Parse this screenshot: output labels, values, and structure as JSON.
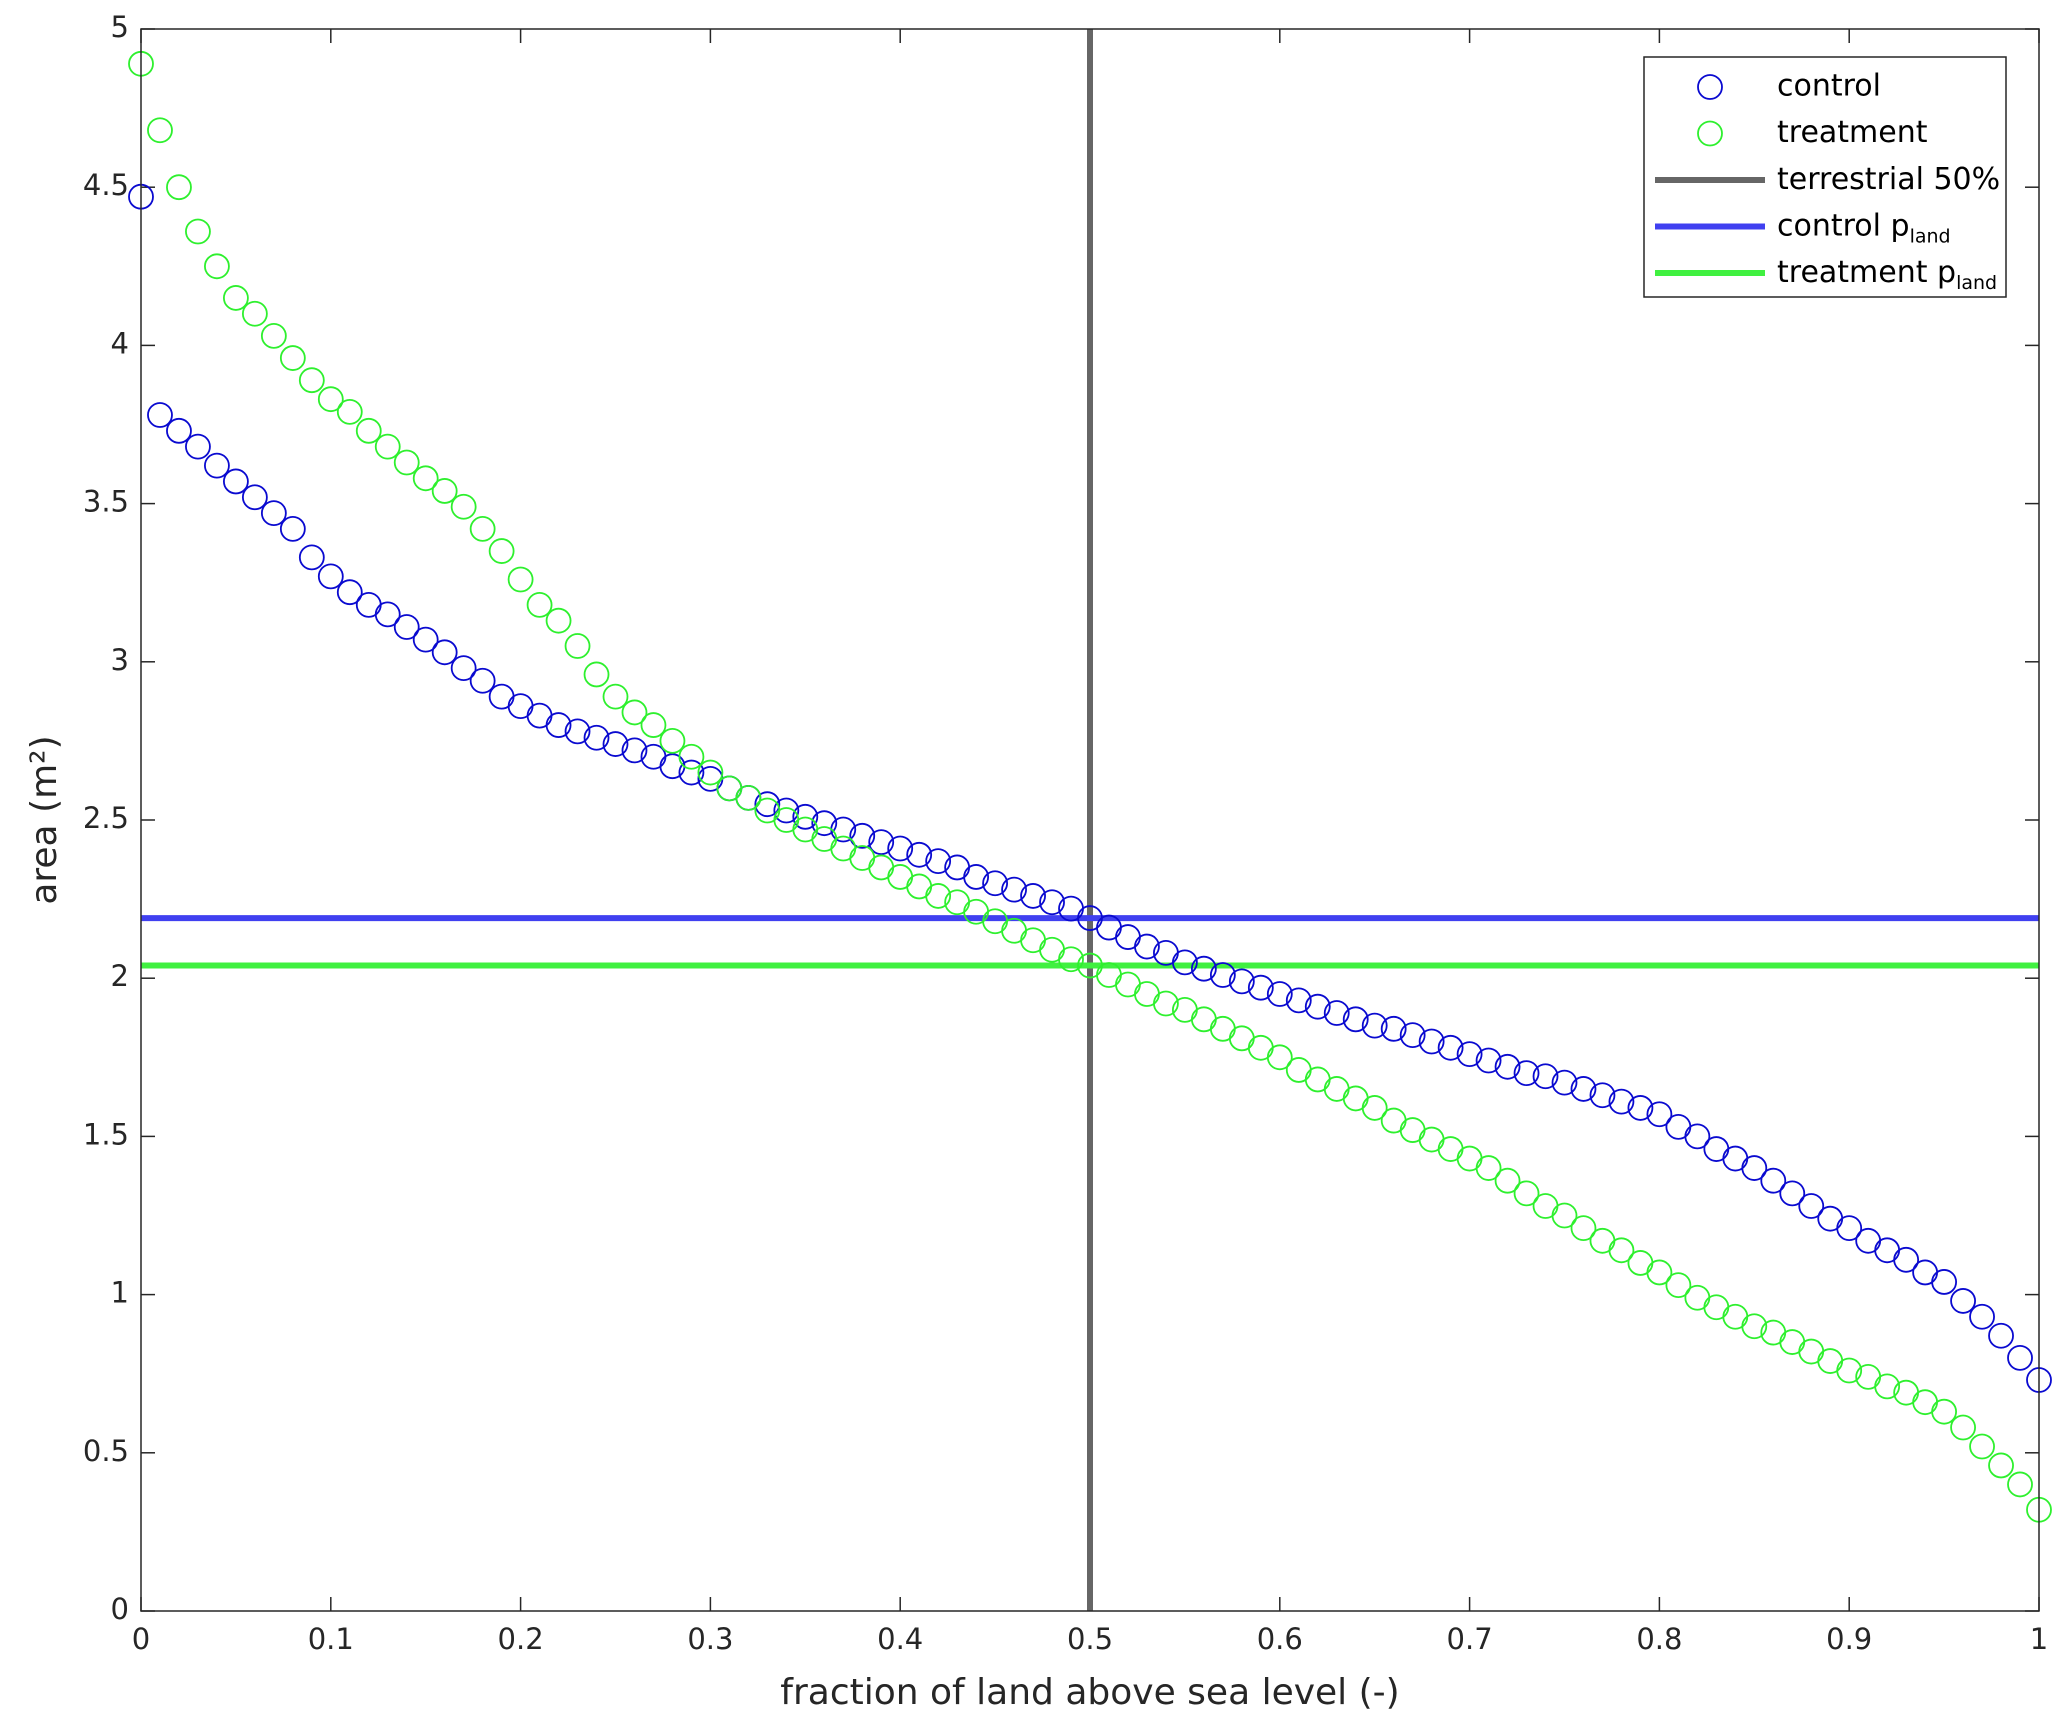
{
  "chart_data": {
    "type": "scatter",
    "xlabel": "fraction of land above sea level (-)",
    "ylabel": "area (m²)",
    "xlim": [
      0,
      1
    ],
    "ylim": [
      0,
      5
    ],
    "xticks": [
      0,
      0.1,
      0.2,
      0.3,
      0.4,
      0.5,
      0.6,
      0.7,
      0.8,
      0.9,
      1
    ],
    "yticks": [
      0,
      0.5,
      1,
      1.5,
      2,
      2.5,
      3,
      3.5,
      4,
      4.5,
      5
    ],
    "legend": "upper right",
    "grid": false,
    "x": [
      0,
      0.01,
      0.02,
      0.03,
      0.04,
      0.05,
      0.06,
      0.07,
      0.08,
      0.09,
      0.1,
      0.11,
      0.12,
      0.13,
      0.14,
      0.15,
      0.16,
      0.17,
      0.18,
      0.19,
      0.2,
      0.21,
      0.22,
      0.23,
      0.24,
      0.25,
      0.26,
      0.27,
      0.28,
      0.29,
      0.3,
      0.31,
      0.32,
      0.33,
      0.34,
      0.35,
      0.36,
      0.37,
      0.38,
      0.39,
      0.4,
      0.41,
      0.42,
      0.43,
      0.44,
      0.45,
      0.46,
      0.47,
      0.48,
      0.49,
      0.5,
      0.51,
      0.52,
      0.53,
      0.54,
      0.55,
      0.56,
      0.57,
      0.58,
      0.59,
      0.6,
      0.61,
      0.62,
      0.63,
      0.64,
      0.65,
      0.66,
      0.67,
      0.68,
      0.69,
      0.7,
      0.71,
      0.72,
      0.73,
      0.74,
      0.75,
      0.76,
      0.77,
      0.78,
      0.79,
      0.8,
      0.81,
      0.82,
      0.83,
      0.84,
      0.85,
      0.86,
      0.87,
      0.88,
      0.89,
      0.9,
      0.91,
      0.92,
      0.93,
      0.94,
      0.95,
      0.96,
      0.97,
      0.98,
      0.99,
      1
    ],
    "series": [
      {
        "name": "control",
        "color": "#0a0ad0",
        "marker": "circle",
        "values": [
          4.47,
          3.78,
          3.73,
          3.68,
          3.62,
          3.57,
          3.52,
          3.47,
          3.42,
          3.33,
          3.27,
          3.22,
          3.18,
          3.15,
          3.11,
          3.07,
          3.03,
          2.98,
          2.94,
          2.89,
          2.86,
          2.83,
          2.8,
          2.78,
          2.76,
          2.74,
          2.72,
          2.7,
          2.67,
          2.65,
          2.63,
          2.6,
          2.57,
          2.55,
          2.53,
          2.51,
          2.49,
          2.47,
          2.45,
          2.43,
          2.41,
          2.39,
          2.37,
          2.35,
          2.32,
          2.3,
          2.28,
          2.26,
          2.24,
          2.22,
          2.19,
          2.16,
          2.13,
          2.1,
          2.08,
          2.05,
          2.03,
          2.01,
          1.99,
          1.97,
          1.95,
          1.93,
          1.91,
          1.89,
          1.87,
          1.85,
          1.84,
          1.82,
          1.8,
          1.78,
          1.76,
          1.74,
          1.72,
          1.7,
          1.69,
          1.67,
          1.65,
          1.63,
          1.61,
          1.59,
          1.57,
          1.53,
          1.5,
          1.46,
          1.43,
          1.4,
          1.36,
          1.32,
          1.28,
          1.24,
          1.21,
          1.17,
          1.14,
          1.11,
          1.07,
          1.04,
          0.98,
          0.93,
          0.87,
          0.8,
          0.73
        ]
      },
      {
        "name": "treatment",
        "color": "#2ef02e",
        "marker": "circle",
        "values": [
          4.89,
          4.68,
          4.5,
          4.36,
          4.25,
          4.15,
          4.1,
          4.03,
          3.96,
          3.89,
          3.83,
          3.79,
          3.73,
          3.68,
          3.63,
          3.58,
          3.54,
          3.49,
          3.42,
          3.35,
          3.26,
          3.18,
          3.13,
          3.05,
          2.96,
          2.89,
          2.84,
          2.8,
          2.75,
          2.7,
          2.65,
          2.6,
          2.57,
          2.53,
          2.5,
          2.47,
          2.44,
          2.41,
          2.38,
          2.35,
          2.32,
          2.29,
          2.26,
          2.24,
          2.21,
          2.18,
          2.15,
          2.12,
          2.09,
          2.06,
          2.04,
          2.01,
          1.98,
          1.95,
          1.92,
          1.9,
          1.87,
          1.84,
          1.81,
          1.78,
          1.75,
          1.71,
          1.68,
          1.65,
          1.62,
          1.59,
          1.55,
          1.52,
          1.49,
          1.46,
          1.43,
          1.4,
          1.36,
          1.32,
          1.28,
          1.25,
          1.21,
          1.17,
          1.14,
          1.1,
          1.07,
          1.03,
          0.99,
          0.96,
          0.93,
          0.9,
          0.88,
          0.85,
          0.82,
          0.79,
          0.76,
          0.74,
          0.71,
          0.69,
          0.66,
          0.63,
          0.58,
          0.52,
          0.46,
          0.4,
          0.32
        ]
      }
    ],
    "reference_lines": [
      {
        "name": "terrestrial 50%",
        "orientation": "vertical",
        "value": 0.5,
        "color": "#666666"
      },
      {
        "name": "control p",
        "name_sub": "land",
        "orientation": "horizontal",
        "value": 2.19,
        "color": "#4040f0"
      },
      {
        "name": "treatment p",
        "name_sub": "land",
        "orientation": "horizontal",
        "value": 2.04,
        "color": "#40f040"
      }
    ]
  }
}
